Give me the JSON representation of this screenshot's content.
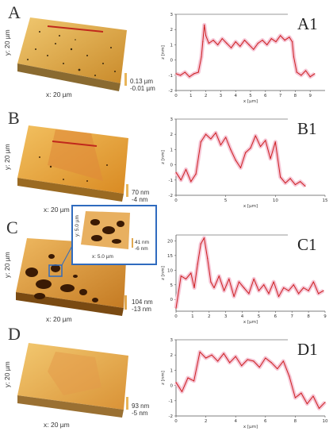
{
  "panels": [
    {
      "letter": "A",
      "profile_label": "A1",
      "afm": {
        "x_label": "x: 20 µm",
        "y_label": "y: 20 µm",
        "scale_top": "0.13 µm",
        "scale_bottom": "-0.01 µm"
      }
    },
    {
      "letter": "B",
      "profile_label": "B1",
      "afm": {
        "x_label": "x: 20 µm",
        "y_label": "y: 20 µm",
        "scale_top": "70 nm",
        "scale_bottom": "-4 nm"
      }
    },
    {
      "letter": "C",
      "profile_label": "C1",
      "afm": {
        "x_label": "x: 20 µm",
        "y_label": "y: 20 µm",
        "scale_top": "104 nm",
        "scale_bottom": "-13 nm"
      },
      "inset": {
        "x_label": "x: 5.0 µm",
        "y_label": "y: 5.0 µm",
        "scale_top": "41 nm",
        "scale_bottom": "-6 nm",
        "border_color": "#2f6bbf"
      }
    },
    {
      "letter": "D",
      "profile_label": "D1",
      "afm": {
        "x_label": "x: 20 µm",
        "y_label": "y: 20 µm",
        "scale_top": "93 nm",
        "scale_bottom": "-5 nm"
      }
    }
  ],
  "chart_data": [
    {
      "type": "line",
      "xlabel": "x [µm]",
      "ylabel": "z [nm]",
      "xlim": [
        0,
        10
      ],
      "ylim": [
        -2,
        3
      ],
      "xticks": [
        "0",
        "1",
        "2",
        "3",
        "4",
        "5",
        "6",
        "7",
        "8",
        "9"
      ],
      "yticks": [
        "3",
        "2",
        "1",
        "0",
        "-1",
        "-2"
      ],
      "x": [
        0,
        0.3,
        0.6,
        0.9,
        1.2,
        1.5,
        1.7,
        1.8,
        1.9,
        2.0,
        2.2,
        2.5,
        2.8,
        3.1,
        3.4,
        3.7,
        4.0,
        4.3,
        4.6,
        4.9,
        5.2,
        5.5,
        5.8,
        6.1,
        6.4,
        6.7,
        7.0,
        7.3,
        7.6,
        7.8,
        7.9,
        8.1,
        8.4,
        8.7,
        9.0,
        9.3
      ],
      "y": [
        -0.9,
        -1.0,
        -0.8,
        -1.1,
        -0.9,
        -0.8,
        0.2,
        1.2,
        2.3,
        1.6,
        1.1,
        1.3,
        1.0,
        1.4,
        1.1,
        0.8,
        1.2,
        0.9,
        1.3,
        1.0,
        0.7,
        1.1,
        1.3,
        1.0,
        1.4,
        1.2,
        1.6,
        1.3,
        1.5,
        1.2,
        0.2,
        -0.8,
        -1.0,
        -0.7,
        -1.1,
        -0.9
      ],
      "line_color": "#cc1f1f"
    },
    {
      "type": "line",
      "xlabel": "x [µm]",
      "ylabel": "z [nm]",
      "xlim": [
        0,
        15
      ],
      "ylim": [
        -2,
        3
      ],
      "xticks": [
        "0",
        "5",
        "10",
        "15"
      ],
      "yticks": [
        "3",
        "2",
        "1",
        "0",
        "-1",
        "-2"
      ],
      "x": [
        0,
        0.5,
        1.0,
        1.5,
        2.0,
        2.5,
        3.0,
        3.5,
        4.0,
        4.5,
        5.0,
        5.5,
        6.0,
        6.5,
        7.0,
        7.5,
        8.0,
        8.5,
        9.0,
        9.5,
        10.0,
        10.5,
        11.0,
        11.5,
        12.0,
        12.5,
        13.0
      ],
      "y": [
        -0.5,
        -1.0,
        -0.3,
        -1.1,
        -0.6,
        1.5,
        2.0,
        1.7,
        2.1,
        1.3,
        1.8,
        1.0,
        0.3,
        -0.2,
        0.8,
        1.1,
        1.9,
        1.2,
        1.6,
        0.4,
        1.5,
        -0.8,
        -1.2,
        -0.9,
        -1.3,
        -1.1,
        -1.4
      ],
      "line_color": "#cc1f1f"
    },
    {
      "type": "line",
      "xlabel": "x [µm]",
      "ylabel": "z [nm]",
      "xlim": [
        0,
        9
      ],
      "ylim": [
        -4,
        22
      ],
      "xticks": [
        "0",
        "1",
        "2",
        "3",
        "4",
        "5",
        "6",
        "7",
        "8",
        "9"
      ],
      "yticks": [
        "20",
        "15",
        "10",
        "5",
        "0"
      ],
      "x": [
        0,
        0.3,
        0.6,
        0.9,
        1.1,
        1.3,
        1.5,
        1.7,
        1.9,
        2.1,
        2.3,
        2.6,
        2.9,
        3.2,
        3.5,
        3.8,
        4.1,
        4.4,
        4.7,
        5.0,
        5.3,
        5.6,
        5.9,
        6.2,
        6.5,
        6.8,
        7.1,
        7.4,
        7.7,
        8.0,
        8.3,
        8.6,
        8.9
      ],
      "y": [
        -3,
        8,
        7,
        9,
        4,
        12,
        19,
        21,
        14,
        6,
        4,
        8,
        3,
        7,
        1,
        6,
        4,
        2,
        7,
        3,
        5,
        2,
        6,
        1,
        4,
        3,
        5,
        2,
        4,
        3,
        6,
        2,
        3
      ],
      "line_color": "#cc1f1f"
    },
    {
      "type": "line",
      "xlabel": "x [µm]",
      "ylabel": "z [nm]",
      "xlim": [
        0,
        10
      ],
      "ylim": [
        -2,
        3
      ],
      "xticks": [
        "0",
        "2",
        "4",
        "6",
        "8",
        "10"
      ],
      "yticks": [
        "3",
        "2",
        "1",
        "0",
        "-1",
        "-2"
      ],
      "x": [
        0,
        0.4,
        0.8,
        1.2,
        1.6,
        2.0,
        2.4,
        2.8,
        3.2,
        3.6,
        4.0,
        4.4,
        4.8,
        5.2,
        5.6,
        6.0,
        6.4,
        6.8,
        7.2,
        7.6,
        8.0,
        8.4,
        8.8,
        9.2,
        9.6,
        10.0
      ],
      "y": [
        0.2,
        -0.4,
        0.5,
        0.3,
        2.2,
        1.8,
        2.0,
        1.6,
        2.1,
        1.5,
        1.9,
        1.3,
        1.7,
        1.6,
        1.2,
        1.8,
        1.5,
        1.1,
        1.6,
        0.6,
        -0.8,
        -0.5,
        -1.2,
        -0.7,
        -1.5,
        -1.1
      ],
      "line_color": "#cc1f1f"
    }
  ]
}
